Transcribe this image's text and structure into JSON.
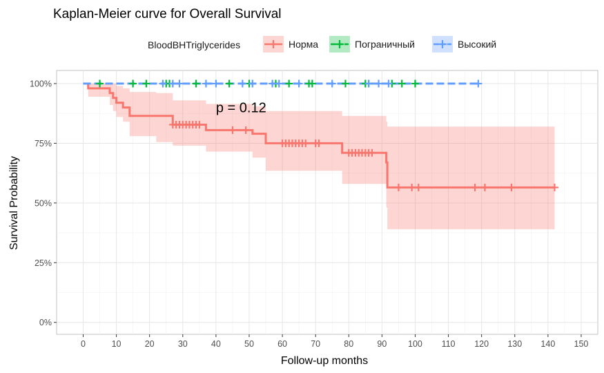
{
  "chart_data": {
    "type": "line",
    "title": "Kaplan-Meier curve for Overall Survival",
    "xlabel": "Follow-up months",
    "ylabel": "Survival Probability",
    "xlim": [
      -8,
      155
    ],
    "ylim": [
      -0.05,
      1.055
    ],
    "x_ticks": [
      0,
      10,
      20,
      30,
      40,
      50,
      60,
      70,
      80,
      90,
      100,
      110,
      120,
      130,
      140,
      150
    ],
    "x_tick_labels": [
      "0",
      "10",
      "20",
      "30",
      "40",
      "50",
      "60",
      "70",
      "80",
      "90",
      "100",
      "110",
      "120",
      "130",
      "140",
      "150"
    ],
    "y_ticks": [
      0,
      0.25,
      0.5,
      0.75,
      1.0
    ],
    "y_tick_labels": [
      "0%",
      "25%",
      "50%",
      "75%",
      "100%"
    ],
    "grid": true,
    "legend_title": "BloodBHTriglycerides",
    "legend_position": "top",
    "annotation": {
      "text": "p = 0.12",
      "x": 40,
      "y": 0.9
    },
    "series": [
      {
        "name": "Норма",
        "color": "#F8766D",
        "fill": "#F8766D",
        "dashed": false,
        "steps": [
          [
            0,
            1.0
          ],
          [
            1.5,
            0.98
          ],
          [
            8,
            0.96
          ],
          [
            9,
            0.94
          ],
          [
            10,
            0.92
          ],
          [
            12,
            0.9
          ],
          [
            14,
            0.865
          ],
          [
            22,
            0.865
          ],
          [
            27,
            0.828
          ],
          [
            35,
            0.828
          ],
          [
            37,
            0.805
          ],
          [
            50,
            0.805
          ],
          [
            51,
            0.79
          ],
          [
            55,
            0.75
          ],
          [
            77,
            0.75
          ],
          [
            78,
            0.71
          ],
          [
            91,
            0.71
          ],
          [
            91.3,
            0.67
          ],
          [
            91.6,
            0.565
          ],
          [
            142,
            0.565
          ]
        ],
        "ci_upper": [
          [
            0,
            1.0
          ],
          [
            1.5,
            1.0
          ],
          [
            8,
            1.0
          ],
          [
            9,
            1.0
          ],
          [
            10,
            0.99
          ],
          [
            12,
            0.98
          ],
          [
            14,
            0.965
          ],
          [
            22,
            0.96
          ],
          [
            27,
            0.93
          ],
          [
            35,
            0.93
          ],
          [
            37,
            0.915
          ],
          [
            50,
            0.915
          ],
          [
            51,
            0.905
          ],
          [
            55,
            0.885
          ],
          [
            77,
            0.885
          ],
          [
            78,
            0.865
          ],
          [
            91,
            0.865
          ],
          [
            91.3,
            0.84
          ],
          [
            91.6,
            0.82
          ],
          [
            142,
            0.82
          ]
        ],
        "ci_lower": [
          [
            0,
            1.0
          ],
          [
            1.5,
            0.945
          ],
          [
            8,
            0.91
          ],
          [
            9,
            0.885
          ],
          [
            10,
            0.86
          ],
          [
            12,
            0.84
          ],
          [
            14,
            0.78
          ],
          [
            22,
            0.755
          ],
          [
            27,
            0.74
          ],
          [
            35,
            0.74
          ],
          [
            37,
            0.715
          ],
          [
            50,
            0.715
          ],
          [
            51,
            0.69
          ],
          [
            55,
            0.635
          ],
          [
            77,
            0.635
          ],
          [
            78,
            0.58
          ],
          [
            91,
            0.58
          ],
          [
            91.3,
            0.48
          ],
          [
            91.6,
            0.39
          ],
          [
            142,
            0.39
          ]
        ],
        "censor_times": [
          27,
          28,
          29,
          30,
          31,
          32,
          33,
          34,
          35,
          45,
          49,
          60,
          61,
          62,
          63,
          64,
          65,
          66,
          67,
          70,
          71,
          80,
          81,
          82,
          83,
          84,
          85,
          86,
          87,
          95,
          99,
          101,
          118,
          121,
          129,
          142
        ]
      },
      {
        "name": "Пограничный",
        "color": "#00BA38",
        "fill": "#00BA38",
        "dashed": true,
        "steps": [
          [
            0,
            1.0
          ],
          [
            100,
            1.0
          ]
        ],
        "censor_times": [
          5,
          15,
          19,
          25,
          26,
          34,
          44,
          50,
          58,
          62,
          68,
          69,
          79,
          85,
          86,
          93,
          96,
          100
        ]
      },
      {
        "name": "Высокий",
        "color": "#619CFF",
        "fill": "#619CFF",
        "dashed": true,
        "steps": [
          [
            0,
            1.0
          ],
          [
            119,
            1.0
          ]
        ],
        "censor_times": [
          24,
          27,
          29,
          37,
          40,
          48,
          51,
          57,
          59,
          65,
          75,
          86,
          89,
          92,
          119
        ]
      }
    ]
  }
}
